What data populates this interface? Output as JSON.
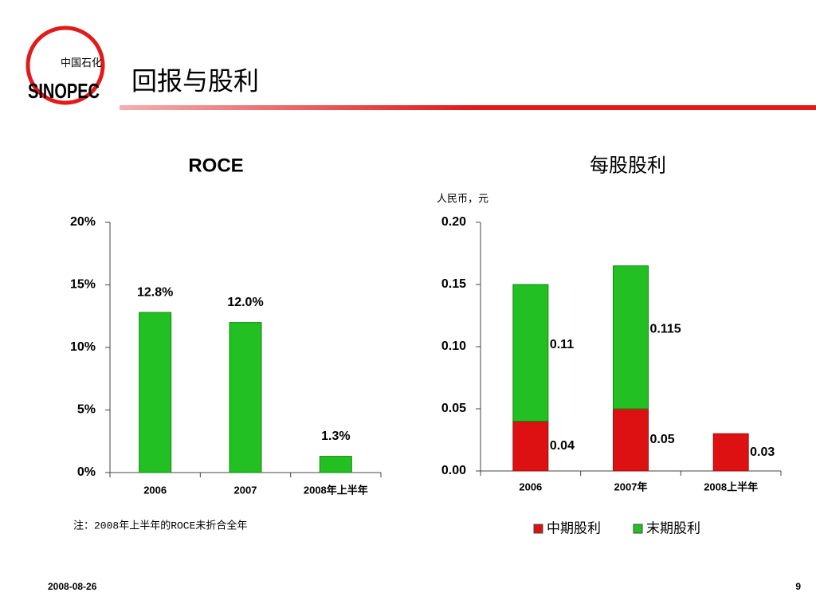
{
  "header": {
    "title": "回报与股利",
    "logo": {
      "cn": "中国石化",
      "en": "SINOPEC"
    }
  },
  "chart_data": [
    {
      "type": "bar",
      "title": "ROCE",
      "categories": [
        "2006",
        "2007",
        "2008年上半年"
      ],
      "values": [
        12.8,
        12.0,
        1.3
      ],
      "value_labels": [
        "12.8%",
        "12.0%",
        "1.3%"
      ],
      "color": "#22c022",
      "ylim": [
        0,
        20
      ],
      "yticks": [
        {
          "value": 0,
          "label": "0%"
        },
        {
          "value": 5,
          "label": "5%"
        },
        {
          "value": 10,
          "label": "10%"
        },
        {
          "value": 15,
          "label": "15%"
        },
        {
          "value": 20,
          "label": "20%"
        }
      ],
      "note": "注：2008年上半年的ROCE未折合全年"
    },
    {
      "type": "stacked_bar",
      "title": "每股股利",
      "y_label": "人民币，元",
      "categories": [
        "2006",
        "2007年",
        "2008上半年"
      ],
      "series": [
        {
          "name": "中期股利",
          "color": "#dd1111",
          "values": [
            0.04,
            0.05,
            0.03
          ]
        },
        {
          "name": "末期股利",
          "color": "#22c022",
          "values": [
            0.11,
            0.115,
            null
          ]
        }
      ],
      "ylim": [
        0,
        0.2
      ],
      "yticks": [
        {
          "value": 0,
          "label": "0.00"
        },
        0.05,
        {
          "value": 0.1,
          "label": "0.10"
        },
        0.15,
        {
          "value": 0.2,
          "label": "0.20"
        }
      ],
      "legend": "bottom"
    }
  ],
  "footer": {
    "date": "2008-08-26",
    "page": "9"
  }
}
